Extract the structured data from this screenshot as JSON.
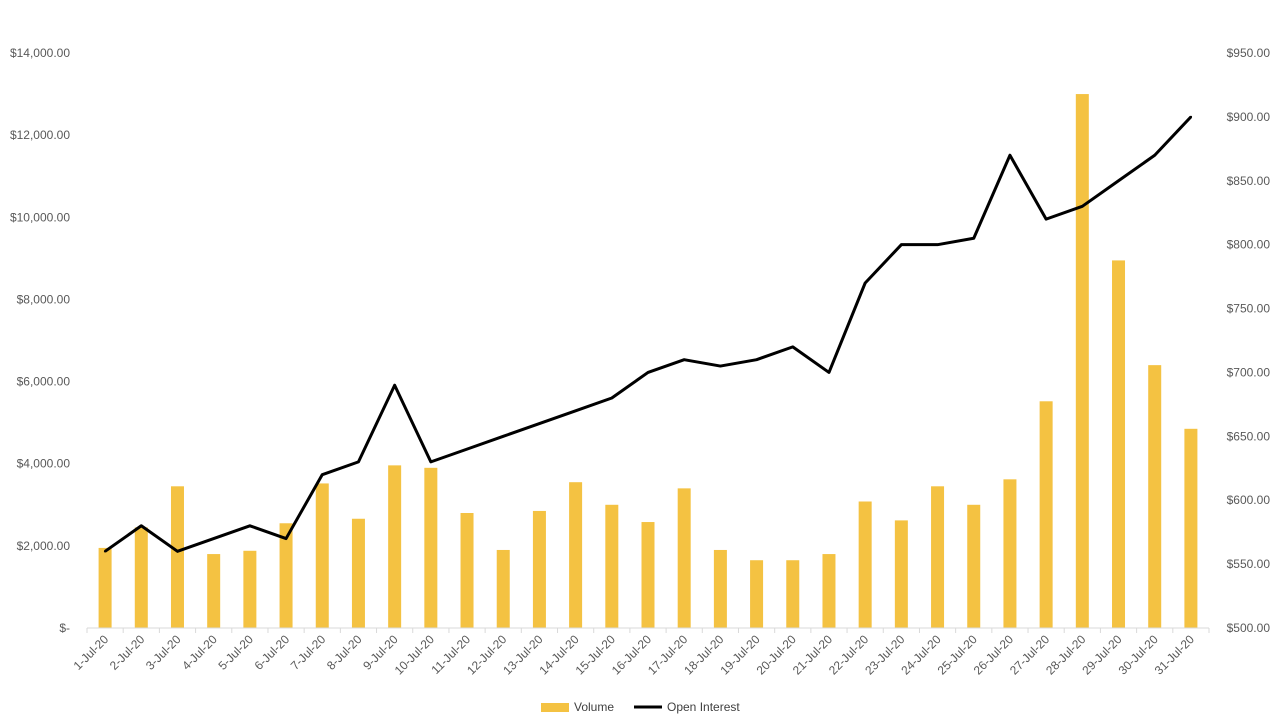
{
  "chart_data": {
    "type": "bar",
    "categories": [
      "1-Jul-20",
      "2-Jul-20",
      "3-Jul-20",
      "4-Jul-20",
      "5-Jul-20",
      "6-Jul-20",
      "7-Jul-20",
      "8-Jul-20",
      "9-Jul-20",
      "10-Jul-20",
      "11-Jul-20",
      "12-Jul-20",
      "13-Jul-20",
      "14-Jul-20",
      "15-Jul-20",
      "16-Jul-20",
      "17-Jul-20",
      "18-Jul-20",
      "19-Jul-20",
      "20-Jul-20",
      "21-Jul-20",
      "22-Jul-20",
      "23-Jul-20",
      "24-Jul-20",
      "25-Jul-20",
      "26-Jul-20",
      "27-Jul-20",
      "28-Jul-20",
      "29-Jul-20",
      "30-Jul-20",
      "31-Jul-20"
    ],
    "series": [
      {
        "name": "Volume",
        "type": "bar",
        "axis": "left",
        "color": "#F4C242",
        "values": [
          1950,
          2450,
          3450,
          1800,
          1880,
          2550,
          3520,
          2660,
          3960,
          3900,
          2800,
          1900,
          2850,
          3550,
          3000,
          2580,
          3400,
          1900,
          1650,
          1650,
          1800,
          3080,
          2620,
          3450,
          3000,
          3620,
          5520,
          13000,
          8950,
          6400,
          4850
        ]
      },
      {
        "name": "Open Interest",
        "type": "line",
        "axis": "right",
        "color": "#000000",
        "values": [
          560,
          580,
          560,
          570,
          580,
          570,
          620,
          630,
          690,
          630,
          640,
          650,
          660,
          670,
          680,
          700,
          710,
          705,
          710,
          720,
          700,
          770,
          800,
          800,
          805,
          870,
          820,
          830,
          850,
          870,
          900
        ]
      }
    ],
    "y_left": {
      "ylim": [
        0,
        14000
      ],
      "ticks": [
        0,
        2000,
        4000,
        6000,
        8000,
        10000,
        12000,
        14000
      ],
      "tick_labels": [
        "$-",
        "$2,000.00",
        "$4,000.00",
        "$6,000.00",
        "$8,000.00",
        "$10,000.00",
        "$12,000.00",
        "$14,000.00"
      ]
    },
    "y_right": {
      "ylim": [
        500,
        950
      ],
      "ticks": [
        500,
        550,
        600,
        650,
        700,
        750,
        800,
        850,
        900,
        950
      ],
      "tick_labels": [
        "$500.00",
        "$550.00",
        "$600.00",
        "$650.00",
        "$700.00",
        "$750.00",
        "$800.00",
        "$850.00",
        "$900.00",
        "$950.00"
      ]
    },
    "grid": false,
    "legend": "bottom",
    "title": "",
    "xlabel": "",
    "ylabel": ""
  }
}
